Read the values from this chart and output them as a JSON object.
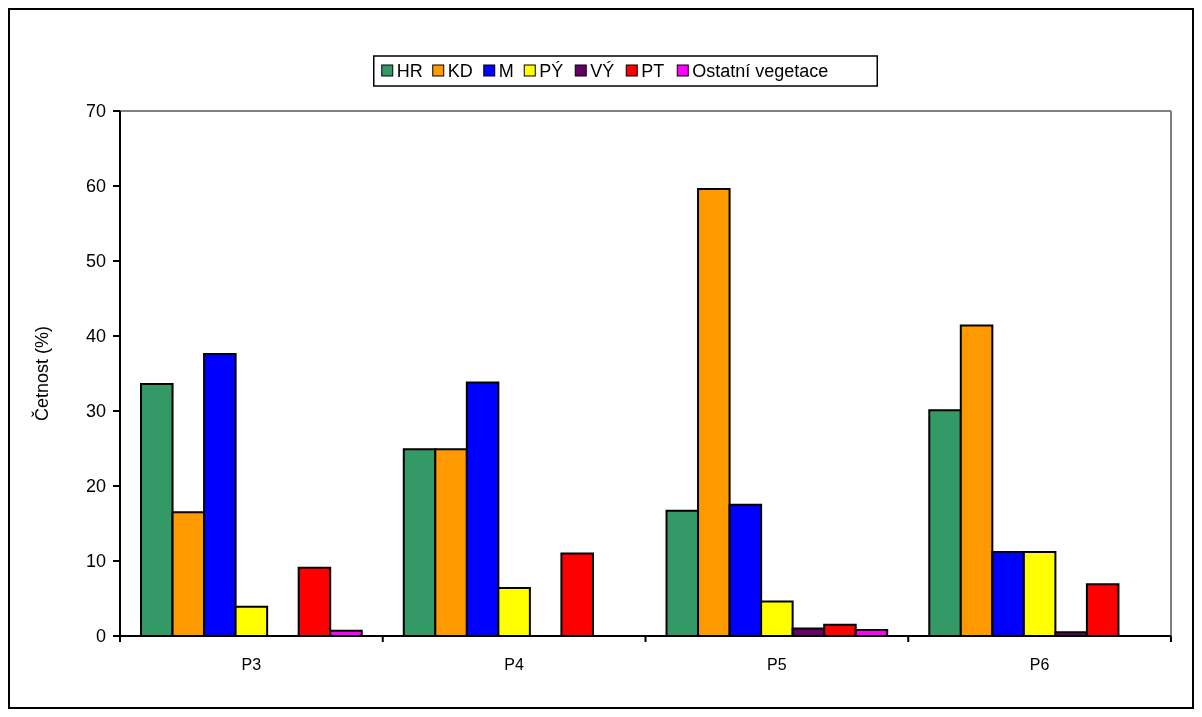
{
  "chart_data": {
    "type": "bar",
    "ylabel": "Četnost (%)",
    "categories": [
      "P3",
      "P4",
      "P5",
      "P6"
    ],
    "series": [
      {
        "name": "HR",
        "color": "#339966",
        "values": [
          33.6,
          24.9,
          16.7,
          30.1
        ]
      },
      {
        "name": "KD",
        "color": "#ff9900",
        "values": [
          16.5,
          24.9,
          59.6,
          41.4
        ]
      },
      {
        "name": "M",
        "color": "#0000ff",
        "values": [
          37.6,
          33.8,
          17.5,
          11.2
        ]
      },
      {
        "name": "PÝ",
        "color": "#ffff00",
        "values": [
          3.9,
          6.4,
          4.6,
          11.2
        ]
      },
      {
        "name": "VÝ",
        "color": "#660066",
        "values": [
          0,
          0,
          1.0,
          0.5
        ]
      },
      {
        "name": "PT",
        "color": "#ff0000",
        "values": [
          9.1,
          11.0,
          1.5,
          6.9
        ]
      },
      {
        "name": "Ostatní vegetace",
        "color": "#ff00ff",
        "values": [
          0.7,
          null,
          0.8,
          0
        ]
      }
    ],
    "ylim": [
      0,
      70
    ],
    "yticks": [
      0,
      10,
      20,
      30,
      40,
      50,
      60,
      70
    ],
    "grid": false,
    "legend": "top"
  }
}
